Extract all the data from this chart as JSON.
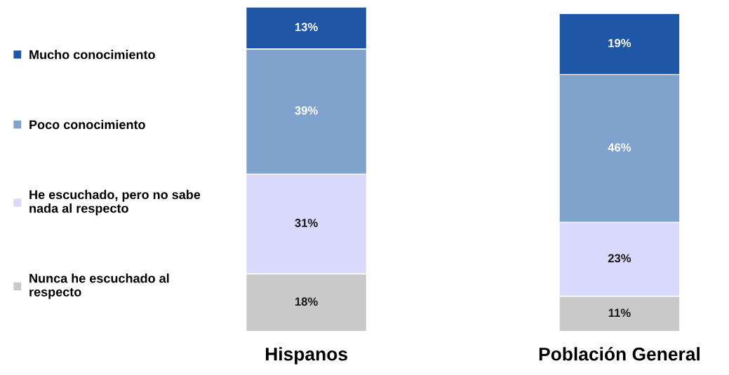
{
  "chart_data": {
    "type": "bar",
    "stacked": true,
    "categories": [
      "Hispanos",
      "Población General"
    ],
    "series": [
      {
        "name": "Nunca he escuchado al\nrespecto",
        "color": "#c9c9c9",
        "values": [
          18,
          11
        ],
        "value_labels": [
          "18%",
          "11%"
        ]
      },
      {
        "name": "He escuchado, pero no sabe\nnada al respecto",
        "color": "#d9d9fb",
        "values": [
          31,
          23
        ],
        "value_labels": [
          "31%",
          "23%"
        ]
      },
      {
        "name": "Poco conocimiento",
        "color": "#7fa3cc",
        "values": [
          39,
          46
        ],
        "value_labels": [
          "39%",
          "46%"
        ]
      },
      {
        "name": "Mucho conocimiento",
        "color": "#1f56a6",
        "values": [
          13,
          19
        ],
        "value_labels": [
          "13%",
          "19%"
        ]
      }
    ],
    "legend": "left",
    "grid": false
  }
}
